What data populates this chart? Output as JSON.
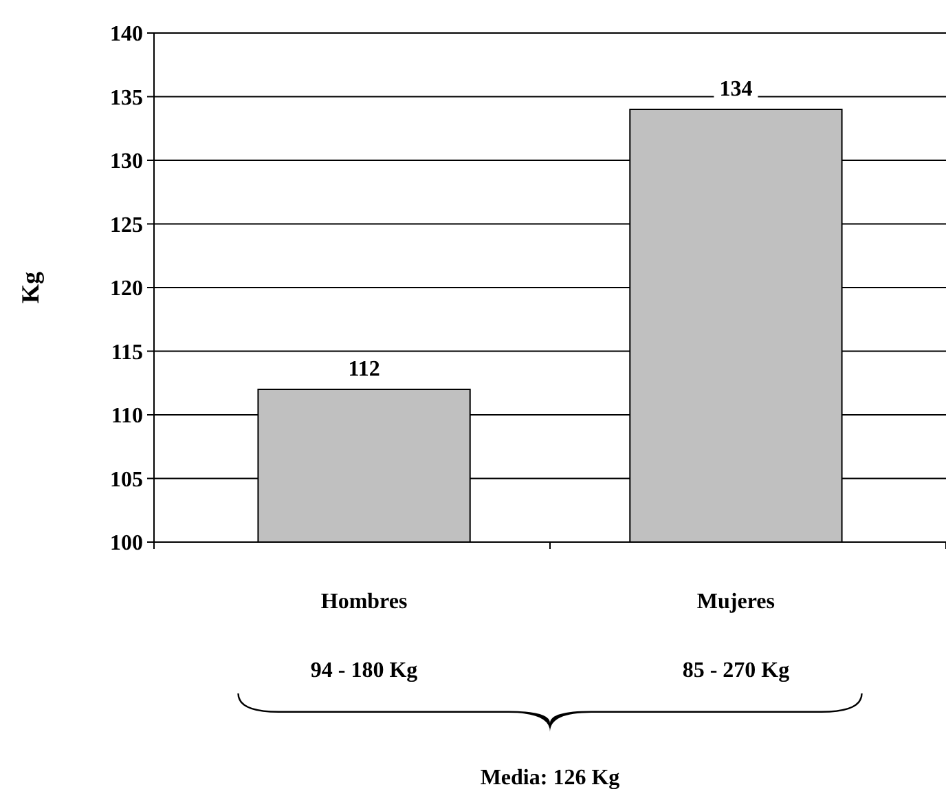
{
  "chart_data": {
    "type": "bar",
    "ylabel": "Kg",
    "categories": [
      "Hombres",
      "Mujeres"
    ],
    "values": [
      112,
      134
    ],
    "color": "#c0c0c0",
    "ylim": [
      100,
      140
    ],
    "yticks": [
      100,
      105,
      110,
      115,
      120,
      125,
      130,
      135,
      140
    ],
    "grid": "y",
    "data_labels": true,
    "annotations": [
      "94 - 180 Kg",
      "85 - 270 Kg",
      "Media: 126 Kg"
    ]
  }
}
